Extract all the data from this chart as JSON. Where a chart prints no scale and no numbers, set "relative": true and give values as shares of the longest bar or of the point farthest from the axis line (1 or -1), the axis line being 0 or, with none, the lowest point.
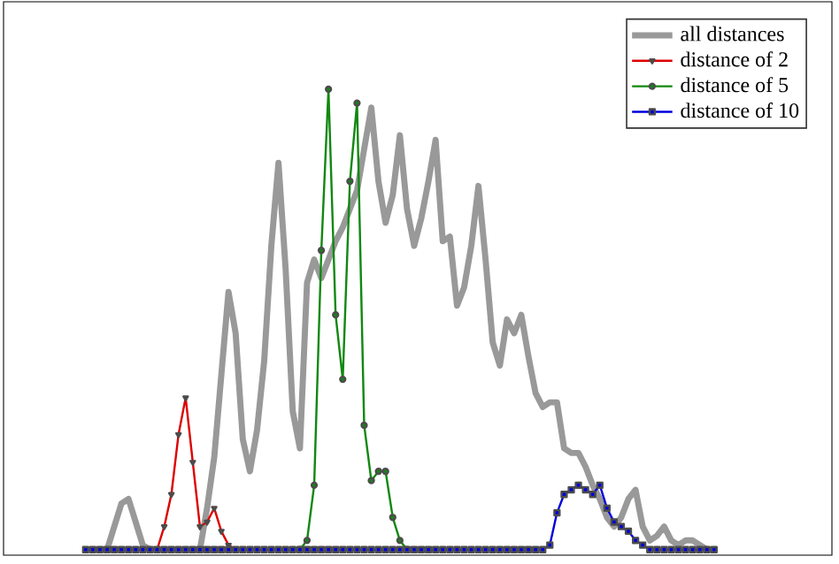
{
  "chart_data": {
    "type": "line",
    "relative": true,
    "legend": "top right",
    "categories": [
      null,
      null,
      null,
      null,
      null,
      null,
      null,
      null,
      null,
      null,
      null,
      null,
      null,
      null,
      null,
      null,
      null,
      null,
      null,
      null,
      null,
      null,
      null,
      null,
      null,
      null,
      null,
      null,
      null,
      null,
      null,
      null,
      null,
      null,
      null,
      null,
      null,
      null,
      null,
      null,
      null,
      null,
      null,
      null,
      null,
      null,
      null,
      null,
      null,
      null,
      null,
      null,
      null,
      null,
      null,
      null,
      null,
      null,
      null,
      null,
      null,
      null,
      null,
      null,
      null,
      null,
      null,
      null,
      null,
      null,
      null,
      null,
      null,
      null,
      null,
      null,
      null,
      null,
      null,
      null,
      null,
      null,
      null,
      null,
      null,
      null,
      null,
      null,
      null
    ],
    "series": [
      {
        "name": "all distances",
        "color": "#999999",
        "marker": "none",
        "values": [
          null,
          null,
          null,
          0,
          0.05,
          0.1,
          0.11,
          0.06,
          0.01,
          0,
          0,
          0,
          0,
          0,
          0,
          0,
          0,
          0.09,
          0.2,
          0.38,
          0.56,
          0.47,
          0.24,
          0.17,
          0.26,
          0.41,
          0.66,
          0.84,
          0.61,
          0.3,
          0.22,
          0.58,
          0.63,
          0.59,
          0.63,
          0.67,
          0.7,
          0.74,
          0.78,
          0.87,
          0.96,
          0.8,
          0.71,
          0.77,
          0.9,
          0.74,
          0.66,
          0.72,
          0.8,
          0.89,
          0.67,
          0.68,
          0.53,
          0.57,
          0.66,
          0.79,
          0.63,
          0.45,
          0.4,
          0.5,
          0.47,
          0.51,
          0.42,
          0.34,
          0.31,
          0.32,
          0.32,
          0.22,
          0.21,
          0.21,
          0.18,
          0.14,
          0.11,
          0.07,
          0.05,
          0.07,
          0.11,
          0.13,
          0.05,
          0.02,
          0.03,
          0.05,
          0.02,
          0.01,
          0.02,
          0.02,
          0.01,
          0,
          null
        ]
      },
      {
        "name": "distance of 2",
        "color": "#dd0000",
        "marker": "triangle",
        "values": [
          null,
          null,
          null,
          null,
          null,
          null,
          null,
          null,
          null,
          null,
          0,
          0.05,
          0.12,
          0.25,
          0.33,
          0.19,
          0.05,
          0.06,
          0.09,
          0.04,
          0.01,
          0,
          null,
          null,
          null,
          null,
          null,
          null,
          null,
          null,
          null,
          null,
          null,
          null,
          null,
          null,
          null,
          null,
          null,
          null,
          null,
          null,
          null,
          null,
          null,
          null,
          null,
          null,
          null,
          null,
          null,
          null,
          null,
          null,
          null,
          null,
          null,
          null,
          null,
          null,
          null,
          null,
          null,
          null,
          null,
          null,
          null,
          null,
          null,
          null,
          null,
          null,
          null,
          null,
          null,
          null,
          null,
          null,
          null,
          null,
          null,
          null,
          null,
          null,
          null,
          null,
          null,
          null,
          null
        ]
      },
      {
        "name": "distance of 5",
        "color": "#118811",
        "marker": "circle",
        "values": [
          null,
          null,
          null,
          null,
          null,
          null,
          null,
          null,
          null,
          null,
          null,
          null,
          null,
          null,
          null,
          null,
          null,
          null,
          null,
          null,
          null,
          null,
          null,
          null,
          null,
          null,
          null,
          null,
          null,
          null,
          0,
          0.02,
          0.14,
          0.65,
          1,
          0.51,
          0.37,
          0.8,
          0.97,
          0.27,
          0.15,
          0.17,
          0.17,
          0.07,
          0.02,
          0,
          null,
          null,
          null,
          null,
          null,
          null,
          null,
          null,
          null,
          null,
          null,
          null,
          null,
          null,
          null,
          null,
          null,
          null,
          null,
          null,
          null,
          null,
          null,
          null,
          null,
          null,
          null,
          null,
          null,
          null,
          null,
          null,
          null,
          null,
          null,
          null,
          null,
          null,
          null,
          null,
          null,
          null,
          null
        ]
      },
      {
        "name": "distance of 10",
        "color": "#0000dd",
        "marker": "square",
        "values": [
          0,
          0,
          0,
          0,
          0,
          0,
          0,
          0,
          0,
          0,
          0,
          0,
          0,
          0,
          0,
          0,
          0,
          0,
          0,
          0,
          0,
          0,
          0,
          0,
          0,
          0,
          0,
          0,
          0,
          0,
          0,
          0,
          0,
          0,
          0,
          0,
          0,
          0,
          0,
          0,
          0,
          0,
          0,
          0,
          0,
          0,
          0,
          0,
          0,
          0,
          0,
          0,
          0,
          0,
          0,
          0,
          0,
          0,
          0,
          0,
          0,
          0,
          0,
          0,
          0,
          0.01,
          0.08,
          0.12,
          0.13,
          0.14,
          0.13,
          0.12,
          0.14,
          0.09,
          0.06,
          0.05,
          0.04,
          0.02,
          0.01,
          0,
          0,
          0,
          0,
          0,
          0,
          0,
          0,
          0,
          0
        ]
      }
    ]
  }
}
